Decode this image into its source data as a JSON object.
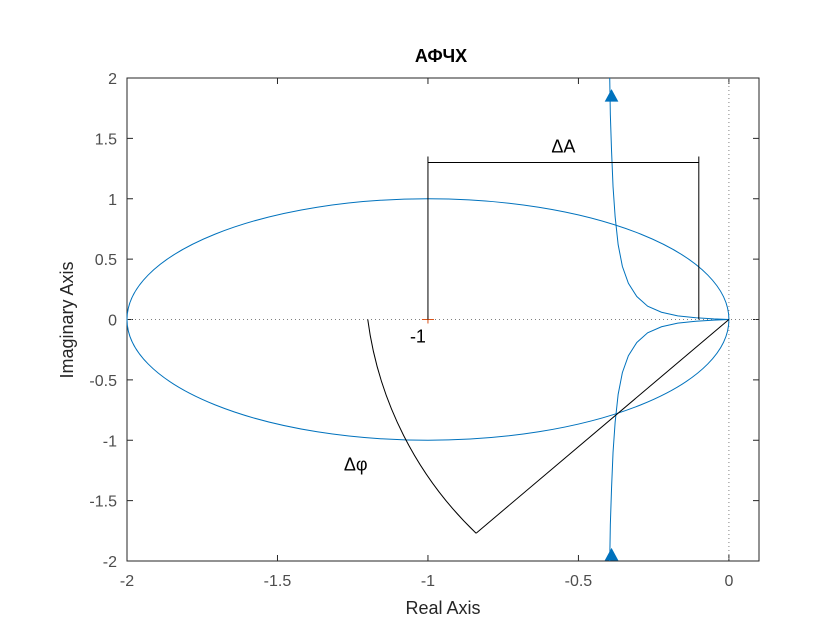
{
  "chart_data": {
    "type": "line",
    "title": "АФЧХ",
    "xlabel": "Real Axis",
    "ylabel": "Imaginary Axis",
    "xlim": [
      -2,
      0.1
    ],
    "ylim": [
      -2,
      2
    ],
    "xticks": [
      -2,
      -1.5,
      -1,
      -0.5,
      0
    ],
    "yticks": [
      -2,
      -1.5,
      -1,
      -0.5,
      0,
      0.5,
      1,
      1.5,
      2
    ],
    "xtick_labels": [
      "-2",
      "-1.5",
      "-1",
      "-0.5",
      "0"
    ],
    "ytick_labels": [
      "-2",
      "-1.5",
      "-1",
      "-0.5",
      "0",
      "0.5",
      "1",
      "1.5",
      "2"
    ],
    "grid": false,
    "colors": {
      "series": "#0072bd",
      "annotation": "#000000",
      "critical_point": "#d95319",
      "reference_line": "#808080"
    },
    "series": [
      {
        "kind": "ellipse",
        "center": [
          -1,
          0
        ],
        "radii": [
          1,
          1
        ]
      },
      {
        "kind": "nyquist-branch-upper",
        "x": [
          -0.396,
          -0.394,
          -0.39,
          -0.385,
          -0.378,
          -0.368,
          -0.354,
          -0.334,
          -0.306,
          -0.27,
          -0.224,
          -0.17,
          -0.11,
          -0.05,
          0
        ],
        "y": [
          2.0,
          1.7,
          1.4,
          1.1,
          0.85,
          0.62,
          0.44,
          0.3,
          0.19,
          0.11,
          0.06,
          0.03,
          0.015,
          0.005,
          0
        ]
      },
      {
        "kind": "nyquist-branch-lower",
        "x": [
          -0.396,
          -0.394,
          -0.39,
          -0.385,
          -0.378,
          -0.368,
          -0.354,
          -0.334,
          -0.306,
          -0.27,
          -0.224,
          -0.17,
          -0.11,
          -0.05,
          0
        ],
        "y": [
          -2.0,
          -1.7,
          -1.4,
          -1.1,
          -0.85,
          -0.62,
          -0.44,
          -0.3,
          -0.19,
          -0.11,
          -0.06,
          -0.03,
          -0.015,
          -0.005,
          0
        ]
      }
    ],
    "arrows": [
      {
        "x": -0.39,
        "y": 1.85,
        "direction": "up"
      },
      {
        "x": -0.39,
        "y": -1.95,
        "direction": "up"
      }
    ],
    "critical_point": {
      "x": -1,
      "y": 0,
      "label": "-1"
    },
    "annotations": {
      "delta_a": {
        "label": "ΔA",
        "left_x": -1,
        "right_x": -0.1,
        "bar_y": 1.3,
        "top_y": 1.35,
        "left_bottom_y": 0,
        "right_bottom_y": 0
      },
      "delta_phi": {
        "label": "Δφ",
        "arc_start": [
          -1.2,
          0
        ],
        "arc_end": [
          -0.84,
          -1.77
        ],
        "ray_end": [
          0,
          0
        ]
      }
    }
  }
}
